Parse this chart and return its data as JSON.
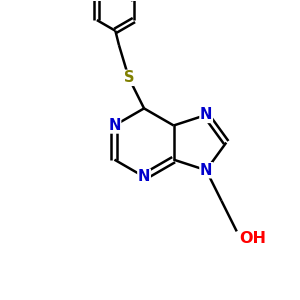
{
  "background_color": "#ffffff",
  "bond_color": "#000000",
  "N_color": "#0000cc",
  "S_color": "#808000",
  "O_color": "#ff0000",
  "bond_width": 1.8,
  "figsize": [
    3.0,
    3.0
  ],
  "dpi": 100,
  "xlim": [
    0,
    10
  ],
  "ylim": [
    0,
    10
  ]
}
